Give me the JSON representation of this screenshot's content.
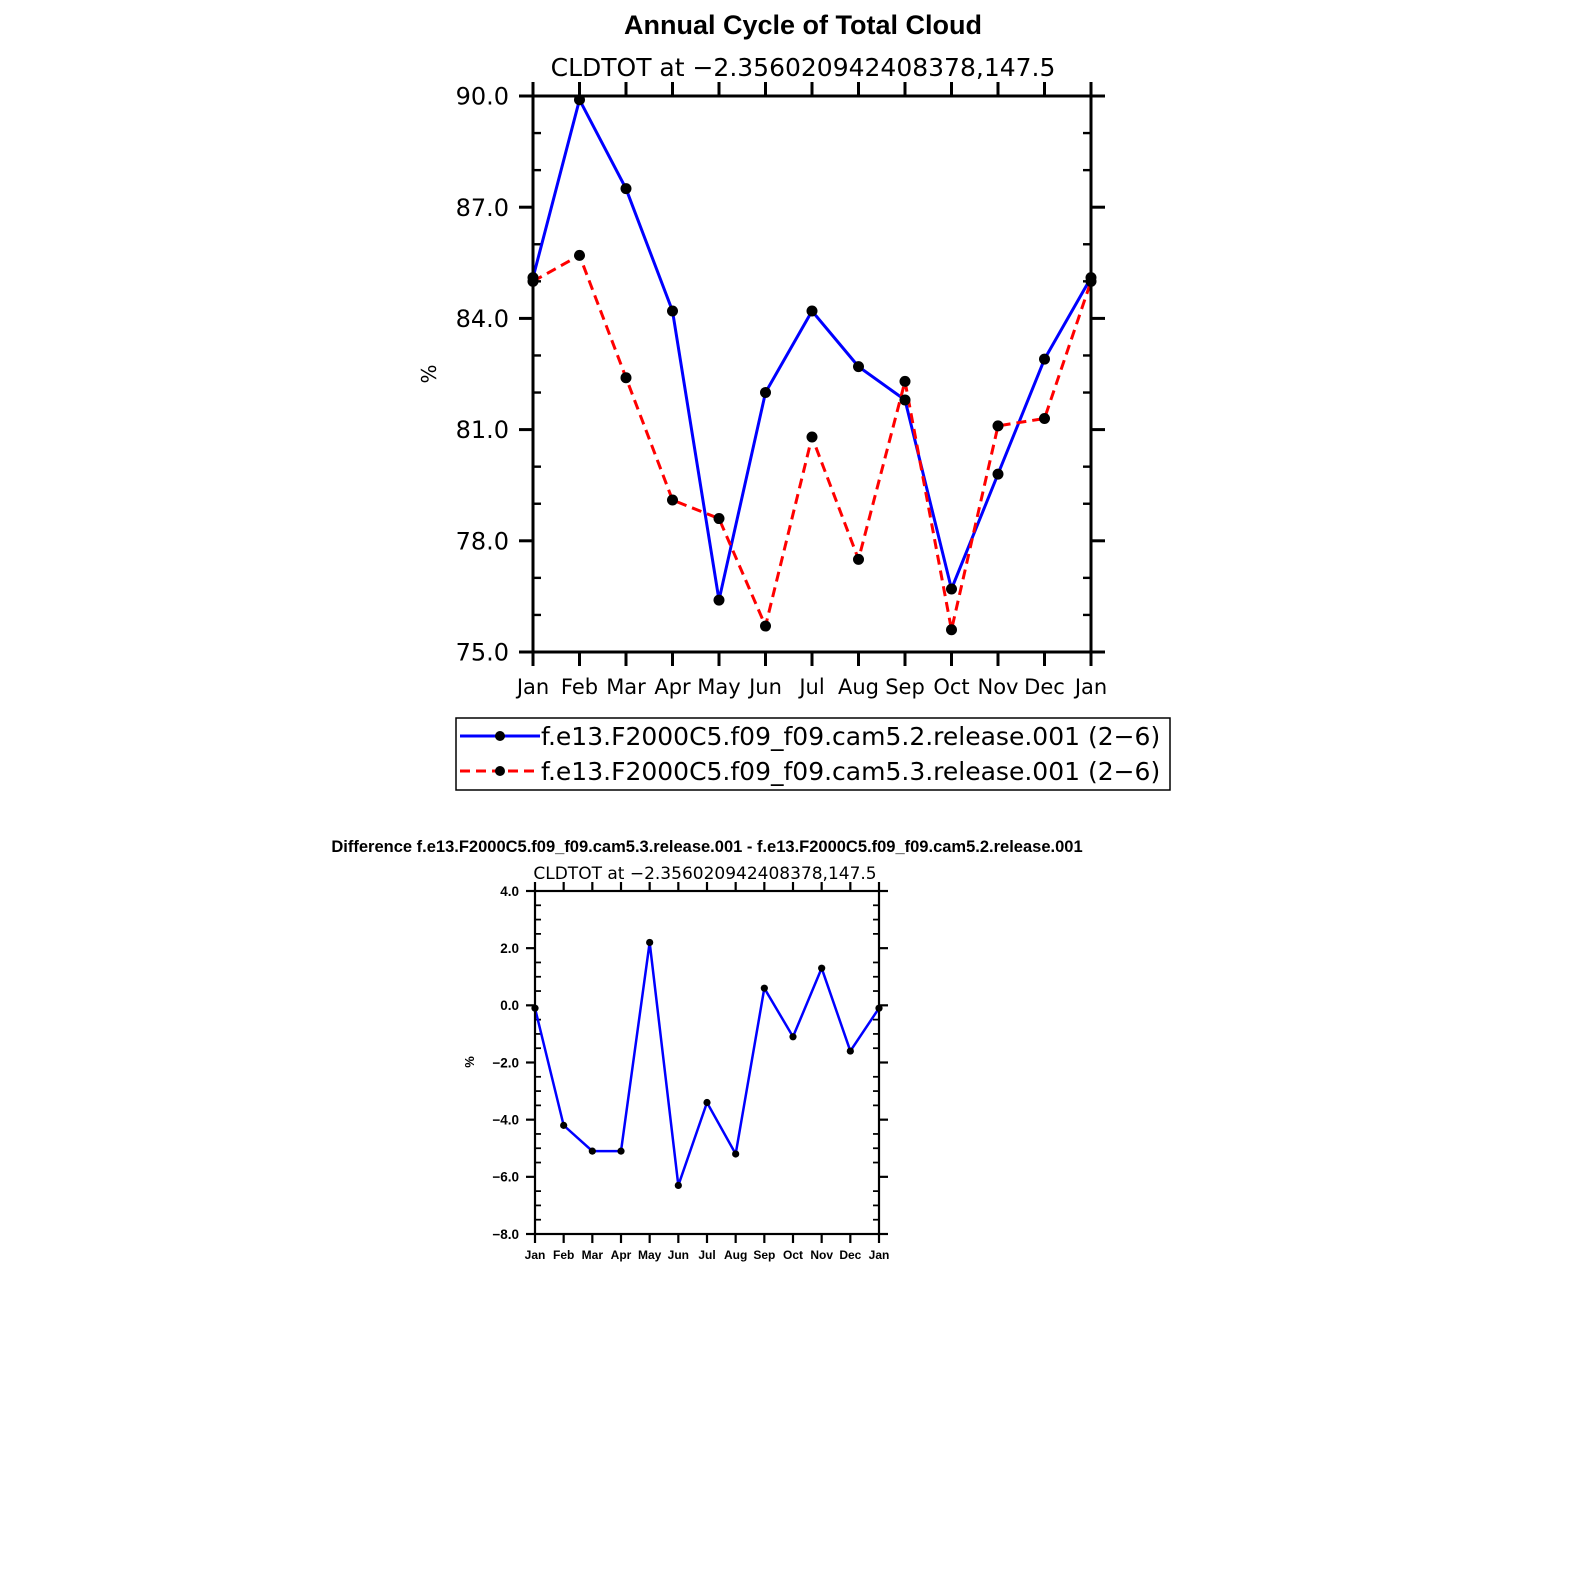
{
  "chart_data": [
    {
      "type": "line",
      "title": "Annual Cycle of Total Cloud",
      "subtitle": "CLDTOT at −2.356020942408378,147.5",
      "ylabel": "%",
      "xlabel": "",
      "categories": [
        "Jan",
        "Feb",
        "Mar",
        "Apr",
        "May",
        "Jun",
        "Jul",
        "Aug",
        "Sep",
        "Oct",
        "Nov",
        "Dec",
        "Jan"
      ],
      "ylim": [
        75.0,
        90.0
      ],
      "yticks": [
        "75.0",
        "78.0",
        "81.0",
        "84.0",
        "87.0",
        "90.0"
      ],
      "grid": false,
      "legend_position": "bottom",
      "series": [
        {
          "name": "f.e13.F2000C5.f09_f09.cam5.2.release.001 (2−6)",
          "color": "#0000ff",
          "dash": "solid",
          "values": [
            85.1,
            89.9,
            87.5,
            84.2,
            76.4,
            82.0,
            84.2,
            82.7,
            81.8,
            76.7,
            79.8,
            82.9,
            85.1
          ]
        },
        {
          "name": "f.e13.F2000C5.f09_f09.cam5.3.release.001 (2−6)",
          "color": "#ff0000",
          "dash": "dashed",
          "values": [
            85.0,
            85.7,
            82.4,
            79.1,
            78.6,
            75.7,
            80.8,
            77.5,
            82.3,
            75.6,
            81.1,
            81.3,
            85.0
          ]
        }
      ]
    },
    {
      "type": "line",
      "title": "Difference f.e13.F2000C5.f09_f09.cam5.3.release.001 - f.e13.F2000C5.f09_f09.cam5.2.release.001",
      "subtitle": "CLDTOT at −2.356020942408378,147.5",
      "ylabel": "%",
      "xlabel": "",
      "categories": [
        "Jan",
        "Feb",
        "Mar",
        "Apr",
        "May",
        "Jun",
        "Jul",
        "Aug",
        "Sep",
        "Oct",
        "Nov",
        "Dec",
        "Jan"
      ],
      "ylim": [
        -8.0,
        4.0
      ],
      "yticks": [
        "−8.0",
        "−6.0",
        "−4.0",
        "−2.0",
        "0.0",
        "2.0",
        "4.0"
      ],
      "grid": false,
      "series": [
        {
          "color": "#0000ff",
          "dash": "solid",
          "values": [
            -0.1,
            -4.2,
            -5.1,
            -5.1,
            2.2,
            -6.3,
            -3.4,
            -5.2,
            0.6,
            -1.1,
            1.3,
            -1.6,
            -0.1
          ]
        }
      ]
    }
  ]
}
